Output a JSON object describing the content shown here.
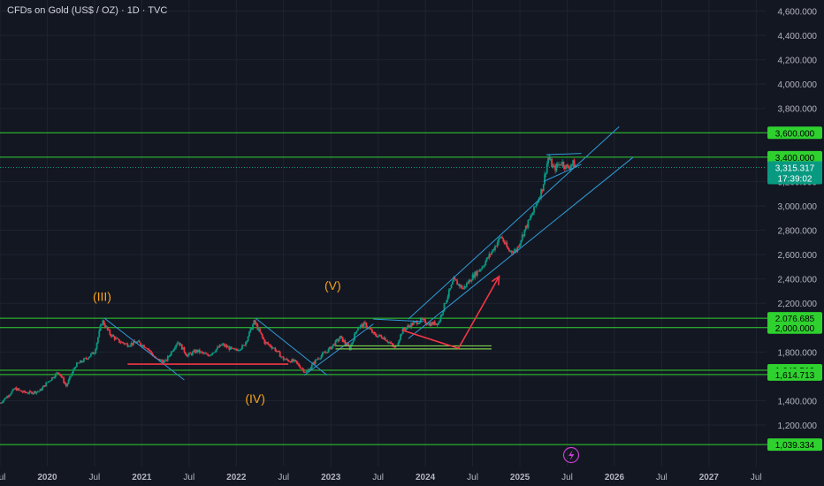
{
  "header": {
    "title": "CFDs on Gold (US$ / OZ) · 1D · TVC"
  },
  "colors": {
    "background": "#131722",
    "grid": "#1f2330",
    "axis_text": "#b2b5be",
    "hline": "#2fd12f",
    "label_bg": "#2fd12f",
    "price_badge": "#089981",
    "channel": "#2f9bd6",
    "support": "#f23645",
    "wave_label": "#f7a21b",
    "candle_up": "#089981",
    "candle_down": "#f23645"
  },
  "chart_data": {
    "type": "candlestick",
    "title": "CFDs on Gold (US$ / OZ) · 1D · TVC",
    "y_ticks": [
      "1,200.000",
      "1,400.000",
      "1,600.000",
      "1,800.000",
      "2,000.000",
      "2,200.000",
      "2,400.000",
      "2,600.000",
      "2,800.000",
      "3,000.000",
      "3,200.000",
      "3,400.000",
      "3,600.000",
      "3,800.000",
      "4,000.000",
      "4,200.000",
      "4,400.000",
      "4,600.000"
    ],
    "x_ticks": [
      "Jul",
      "2020",
      "Jul",
      "2021",
      "Jul",
      "2022",
      "Jul",
      "2023",
      "Jul",
      "2024",
      "Jul",
      "2025",
      "Jul",
      "2026",
      "Jul",
      "2027",
      "Jul"
    ],
    "x_tick_years": [
      2019.5,
      2020.0,
      2020.5,
      2021.0,
      2021.5,
      2022.0,
      2022.5,
      2023.0,
      2023.5,
      2024.0,
      2024.5,
      2025.0,
      2025.5,
      2026.0,
      2026.5,
      2027.0,
      2027.5
    ],
    "ylim": [
      1000,
      4650
    ],
    "xlim": [
      2019.5,
      2027.6
    ],
    "price_series": [
      [
        2019.5,
        1380
      ],
      [
        2019.58,
        1440
      ],
      [
        2019.66,
        1500
      ],
      [
        2019.74,
        1470
      ],
      [
        2019.82,
        1465
      ],
      [
        2019.92,
        1480
      ],
      [
        2020.0,
        1550
      ],
      [
        2020.12,
        1640
      ],
      [
        2020.2,
        1520
      ],
      [
        2020.3,
        1690
      ],
      [
        2020.4,
        1740
      ],
      [
        2020.5,
        1800
      ],
      [
        2020.58,
        2060
      ],
      [
        2020.66,
        1950
      ],
      [
        2020.75,
        1890
      ],
      [
        2020.85,
        1860
      ],
      [
        2020.95,
        1880
      ],
      [
        2021.05,
        1840
      ],
      [
        2021.15,
        1740
      ],
      [
        2021.25,
        1720
      ],
      [
        2021.38,
        1890
      ],
      [
        2021.48,
        1770
      ],
      [
        2021.58,
        1810
      ],
      [
        2021.7,
        1770
      ],
      [
        2021.85,
        1860
      ],
      [
        2021.98,
        1810
      ],
      [
        2022.08,
        1850
      ],
      [
        2022.19,
        2050
      ],
      [
        2022.3,
        1880
      ],
      [
        2022.4,
        1830
      ],
      [
        2022.5,
        1740
      ],
      [
        2022.62,
        1720
      ],
      [
        2022.74,
        1630
      ],
      [
        2022.85,
        1740
      ],
      [
        2022.98,
        1820
      ],
      [
        2023.1,
        1920
      ],
      [
        2023.2,
        1830
      ],
      [
        2023.28,
        2000
      ],
      [
        2023.36,
        2030
      ],
      [
        2023.46,
        1940
      ],
      [
        2023.56,
        1920
      ],
      [
        2023.68,
        1830
      ],
      [
        2023.76,
        1980
      ],
      [
        2023.86,
        2030
      ],
      [
        2023.96,
        2060
      ],
      [
        2024.05,
        2030
      ],
      [
        2024.14,
        2040
      ],
      [
        2024.22,
        2230
      ],
      [
        2024.3,
        2390
      ],
      [
        2024.4,
        2320
      ],
      [
        2024.5,
        2420
      ],
      [
        2024.6,
        2500
      ],
      [
        2024.7,
        2620
      ],
      [
        2024.8,
        2750
      ],
      [
        2024.88,
        2630
      ],
      [
        2024.96,
        2630
      ],
      [
        2025.05,
        2800
      ],
      [
        2025.14,
        2950
      ],
      [
        2025.24,
        3150
      ],
      [
        2025.3,
        3400
      ],
      [
        2025.36,
        3300
      ],
      [
        2025.44,
        3360
      ],
      [
        2025.5,
        3310
      ],
      [
        2025.56,
        3350
      ],
      [
        2025.6,
        3315
      ]
    ],
    "horizontal_levels": [
      {
        "price": 3600,
        "label": "3,600.000"
      },
      {
        "price": 3400,
        "label": "3,400.000"
      },
      {
        "price": 2076.685,
        "label": "2,076.685"
      },
      {
        "price": 2000,
        "label": "2,000.000"
      },
      {
        "price": 1649.519,
        "label": "1,649.519"
      },
      {
        "price": 1614.713,
        "label": "1,614.713"
      },
      {
        "price": 1039.334,
        "label": "1,039.334"
      }
    ],
    "current_price": {
      "value": 3315.317,
      "label": "3,315.317",
      "countdown": "17:39:02"
    },
    "wave_labels": [
      {
        "text": "(III)",
        "x": 2020.58,
        "price": 2220
      },
      {
        "text": "(IV)",
        "x": 2022.2,
        "price": 1380
      },
      {
        "text": "(V)",
        "x": 2023.02,
        "price": 2310
      }
    ],
    "trend_lines": [
      {
        "kind": "channel",
        "points": [
          [
            2020.6,
            2080
          ],
          [
            2021.45,
            1570
          ]
        ]
      },
      {
        "kind": "channel",
        "points": [
          [
            2022.2,
            2080
          ],
          [
            2022.96,
            1610
          ]
        ]
      },
      {
        "kind": "channel",
        "points": [
          [
            2022.72,
            1610
          ],
          [
            2023.45,
            2030
          ]
        ]
      },
      {
        "kind": "channel",
        "points": [
          [
            2023.45,
            2070
          ],
          [
            2023.98,
            2050
          ]
        ]
      },
      {
        "kind": "channel",
        "points": [
          [
            2023.82,
            2070
          ],
          [
            2026.05,
            3650
          ]
        ]
      },
      {
        "kind": "channel",
        "points": [
          [
            2023.82,
            1910
          ],
          [
            2026.2,
            3400
          ]
        ]
      },
      {
        "kind": "channel",
        "points": [
          [
            2025.25,
            3200
          ],
          [
            2025.65,
            3340
          ]
        ]
      },
      {
        "kind": "channel",
        "points": [
          [
            2025.28,
            3420
          ],
          [
            2025.65,
            3430
          ]
        ]
      },
      {
        "kind": "support",
        "points": [
          [
            2020.85,
            1700
          ],
          [
            2022.55,
            1700
          ]
        ]
      },
      {
        "kind": "support_green",
        "points": [
          [
            2023.05,
            1850
          ],
          [
            2024.7,
            1850
          ]
        ]
      },
      {
        "kind": "support_green",
        "points": [
          [
            2023.05,
            1825
          ],
          [
            2024.7,
            1825
          ]
        ]
      },
      {
        "kind": "arrow",
        "points": [
          [
            2023.75,
            1980
          ],
          [
            2024.35,
            1830
          ],
          [
            2024.78,
            2420
          ]
        ]
      }
    ]
  }
}
